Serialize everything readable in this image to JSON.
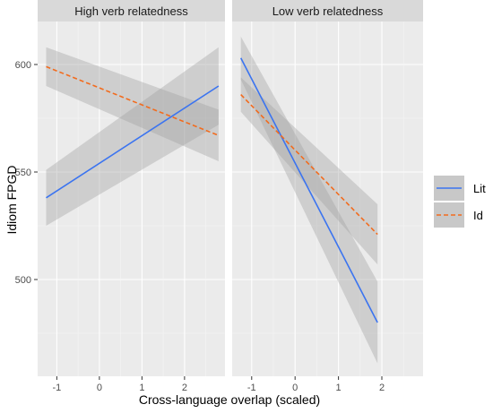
{
  "chart_data": {
    "type": "line",
    "xlabel": "Cross-language overlap (scaled)",
    "ylabel": "Idiom FPGD",
    "xticks": [
      -1,
      0,
      1,
      2
    ],
    "yticks": [
      500,
      550,
      600
    ],
    "xlim": [
      -1.45,
      2.95
    ],
    "ylim": [
      455,
      620
    ],
    "grid": true,
    "legend_position": "right",
    "colors": {
      "Lit": "#3b74f0",
      "Id": "#f26b1d",
      "band": "#a3a3a3",
      "panel": "#ebebeb"
    },
    "panels": [
      {
        "title": "High verb relatedness",
        "x_range": [
          -1.25,
          2.8
        ],
        "series": [
          {
            "name": "Lit",
            "style": "solid",
            "y": [
              538,
              590
            ],
            "ci_low": [
              525,
              572
            ],
            "ci_high": [
              551,
              608
            ]
          },
          {
            "name": "Id",
            "style": "dashed",
            "y": [
              599,
              567
            ],
            "ci_low": [
              590,
              555
            ],
            "ci_high": [
              608,
              579
            ]
          }
        ]
      },
      {
        "title": "Low verb relatedness",
        "x_range": [
          -1.25,
          1.9
        ],
        "series": [
          {
            "name": "Lit",
            "style": "solid",
            "y": [
              603,
              480
            ],
            "ci_low": [
              593,
              461
            ],
            "ci_high": [
              613,
              499
            ]
          },
          {
            "name": "Id",
            "style": "dashed",
            "y": [
              586,
              521
            ],
            "ci_low": [
              578,
              507
            ],
            "ci_high": [
              594,
              535
            ]
          }
        ]
      }
    ],
    "legend": [
      "Lit",
      "Id"
    ]
  }
}
